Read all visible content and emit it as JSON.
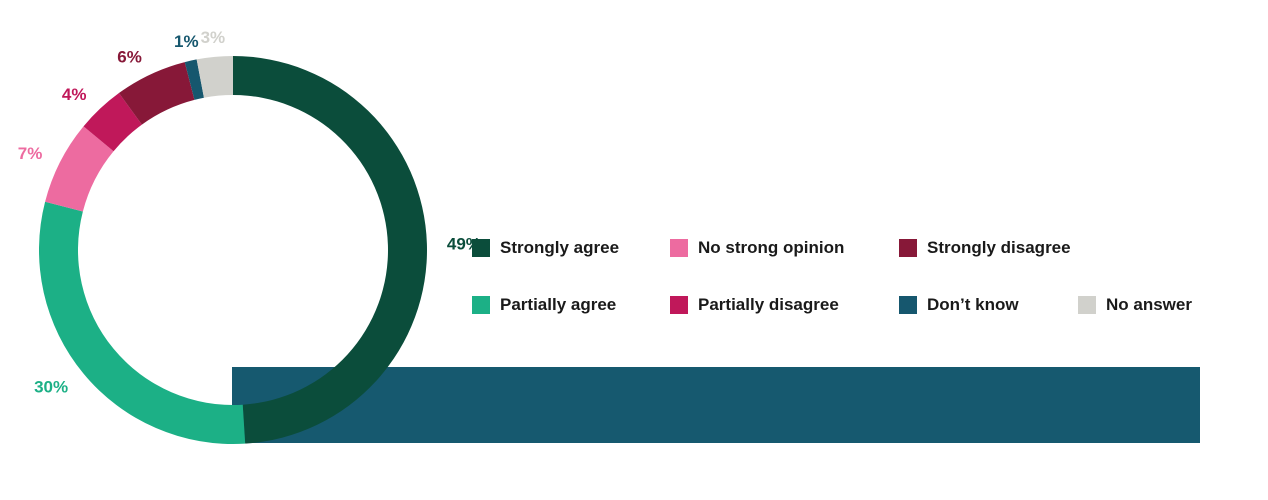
{
  "chart_data": {
    "type": "pie",
    "variant": "donut",
    "title": "",
    "slices": [
      {
        "label": "Strongly agree",
        "value": 49,
        "display": "49%",
        "color": "#0b4d3b"
      },
      {
        "label": "Partially agree",
        "value": 30,
        "display": "30%",
        "color": "#1cb086"
      },
      {
        "label": "No strong opinion",
        "value": 7,
        "display": "7%",
        "color": "#ed6ba0"
      },
      {
        "label": "Partially disagree",
        "value": 4,
        "display": "4%",
        "color": "#c0185a"
      },
      {
        "label": "Strongly disagree",
        "value": 6,
        "display": "6%",
        "color": "#871838"
      },
      {
        "label": "Don’t know",
        "value": 1,
        "display": "1%",
        "color": "#16576e"
      },
      {
        "label": "No answer",
        "value": 3,
        "display": "3%",
        "color": "#d1d1cc"
      }
    ],
    "legend_placement": "right",
    "accent_strip_color": "#16596f"
  }
}
